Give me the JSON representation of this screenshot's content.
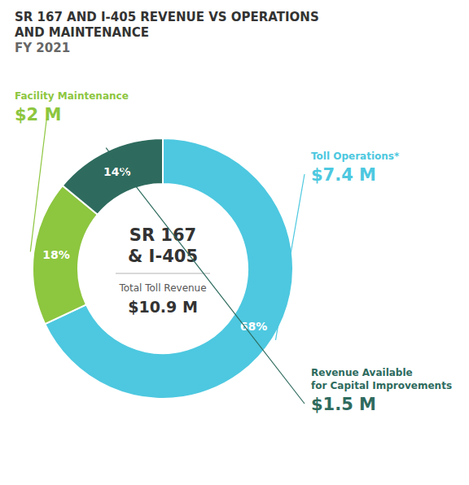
{
  "chart_data": {
    "type": "pie",
    "title": "SR 167 AND I-405 REVENUE VS OPERATIONS\nAND MAINTENANCE",
    "subtitle": "FY 2021",
    "categories": [
      "Toll Operations*",
      "Facility Maintenance",
      "Revenue Available\nfor Capital Improvements"
    ],
    "values": [
      68,
      18,
      14
    ],
    "value_labels": [
      "68%",
      "18%",
      "14%"
    ],
    "data_labels": true,
    "colors": [
      "#4dc8e0",
      "#8dc63f",
      "#2e6b5e"
    ],
    "amount_labels": [
      "$7.4 M",
      "$2 M",
      "$1.5 M"
    ],
    "center_text": [
      "SR 167",
      "& I-405"
    ],
    "total_caption": "Total Toll Revenue",
    "total_label": "$10.9 M"
  }
}
